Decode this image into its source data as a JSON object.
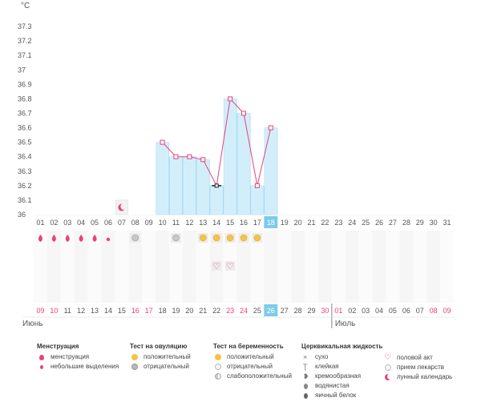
{
  "chart_data": {
    "type": "line",
    "unit_label": "°C",
    "y_ticks": [
      "36",
      "36.1",
      "36.2",
      "36.3",
      "36.4",
      "36.5",
      "36.6",
      "36.7",
      "36.8",
      "36.9",
      "37",
      "37.1",
      "37.2",
      "37.3"
    ],
    "ylim": [
      36.0,
      37.35
    ],
    "cycle_days": [
      "01",
      "02",
      "03",
      "04",
      "05",
      "06",
      "07",
      "08",
      "09",
      "10",
      "11",
      "12",
      "13",
      "14",
      "15",
      "16",
      "17",
      "18",
      "19",
      "20",
      "21",
      "22",
      "23",
      "24",
      "25",
      "26",
      "27",
      "28",
      "29",
      "30",
      "31"
    ],
    "current_cycle_day": "18",
    "temperatures": [
      {
        "day": "10",
        "value": 36.5
      },
      {
        "day": "11",
        "value": 36.4
      },
      {
        "day": "12",
        "value": 36.4
      },
      {
        "day": "13",
        "value": 36.38
      },
      {
        "day": "14",
        "value": 36.2
      },
      {
        "day": "15",
        "value": 36.8
      },
      {
        "day": "16",
        "value": 36.7
      },
      {
        "day": "17",
        "value": 36.2
      },
      {
        "day": "18",
        "value": 36.6
      }
    ],
    "special_point_day": "14",
    "dates": [
      "09",
      "10",
      "11",
      "12",
      "13",
      "14",
      "15",
      "16",
      "17",
      "18",
      "19",
      "20",
      "21",
      "22",
      "23",
      "24",
      "25",
      "26",
      "27",
      "28",
      "29",
      "30",
      "01",
      "02",
      "03",
      "04",
      "05",
      "06",
      "07",
      "08",
      "09"
    ],
    "weekend_date_indices": [
      0,
      1,
      7,
      8,
      14,
      15,
      21,
      22,
      29,
      30
    ],
    "current_date_index": 17,
    "month_labels": [
      {
        "label": "Июнь",
        "start_index": 0
      },
      {
        "label": "Июль",
        "start_index": 22
      }
    ],
    "menstruation": [
      "heavy",
      "heavy",
      "heavy",
      "heavy",
      "heavy",
      "light"
    ],
    "lunar_marker_day": "07",
    "ovulation_tests": [
      {
        "day": "08",
        "result": "negative"
      },
      {
        "day": "11",
        "result": "negative"
      },
      {
        "day": "13",
        "result": "positive"
      },
      {
        "day": "14",
        "result": "positive"
      },
      {
        "day": "15",
        "result": "positive"
      },
      {
        "day": "16",
        "result": "positive"
      },
      {
        "day": "17",
        "result": "positive"
      }
    ],
    "intercourse_days": [
      "14",
      "15"
    ],
    "colors": {
      "sky": "#8fd8f2",
      "bar": "#d3eefb",
      "line": "#e8427a",
      "current": "#7ccbea",
      "weekend": "#e8427a"
    }
  },
  "legend": {
    "menstruation": {
      "title": "Менструация",
      "items": [
        {
          "label": "менструация",
          "icon": "heavy-drop-icon"
        },
        {
          "label": "небольшие выделения",
          "icon": "small-drop-icon"
        }
      ]
    },
    "ovulation": {
      "title": "Тест на овуляцию",
      "items": [
        {
          "label": "положительный",
          "icon": "sun-icon"
        },
        {
          "label": "отрицательный",
          "icon": "grey-circle-icon"
        }
      ]
    },
    "pregnancy": {
      "title": "Тест на беременность",
      "items": [
        {
          "label": "положительный",
          "icon": "sun-icon"
        },
        {
          "label": "отрицательный",
          "icon": "white-circle-icon"
        },
        {
          "label": "слабоположительный",
          "icon": "half-circle-icon"
        }
      ]
    },
    "cervical": {
      "title": "Церквикальная жидкость",
      "items": [
        {
          "label": "сухо",
          "icon": "cross-icon"
        },
        {
          "label": "клейкая",
          "icon": "sticky-icon"
        },
        {
          "label": "кремообразная",
          "icon": "creamy-icon"
        },
        {
          "label": "водянистая",
          "icon": "watery-drop-icon"
        },
        {
          "label": "яичный белок",
          "icon": "egg-white-drop-icon"
        }
      ]
    },
    "other": {
      "items": [
        {
          "label": "половой акт",
          "icon": "heart-icon"
        },
        {
          "label": "прием лекарств",
          "icon": "pill-icon"
        },
        {
          "label": "лунный календарь",
          "icon": "moon-icon"
        }
      ]
    }
  }
}
